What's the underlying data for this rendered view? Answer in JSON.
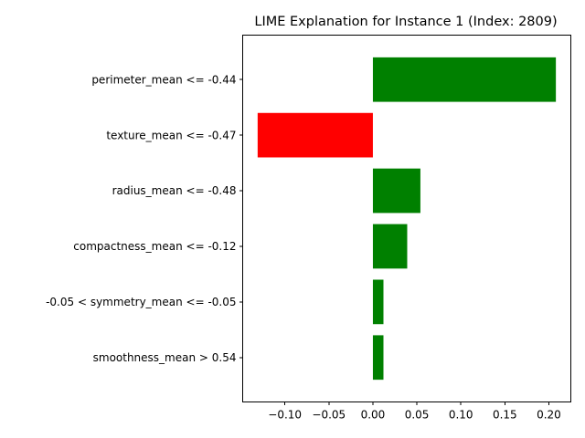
{
  "chart_data": {
    "type": "bar",
    "orientation": "horizontal",
    "title": "LIME Explanation for Instance 1 (Index: 2809)",
    "xlabel": "",
    "ylabel": "",
    "categories": [
      "perimeter_mean <= -0.44",
      "texture_mean <= -0.47",
      "radius_mean <= -0.48",
      "compactness_mean <= -0.12",
      "-0.05 < symmetry_mean <= -0.05",
      "smoothness_mean > 0.54"
    ],
    "values": [
      0.208,
      -0.131,
      0.054,
      0.039,
      0.012,
      0.012
    ],
    "bar_colors": [
      "#008000",
      "#ff0000",
      "#008000",
      "#008000",
      "#008000",
      "#008000"
    ],
    "positive_color": "#008000",
    "negative_color": "#ff0000",
    "xlim": [
      -0.148,
      0.225
    ],
    "x_ticks": [
      -0.1,
      -0.05,
      0.0,
      0.05,
      0.1,
      0.15,
      0.2
    ],
    "x_tick_labels": [
      "−0.10",
      "−0.05",
      "0.00",
      "0.05",
      "0.10",
      "0.15",
      "0.20"
    ],
    "grid": false,
    "legend": "none"
  }
}
